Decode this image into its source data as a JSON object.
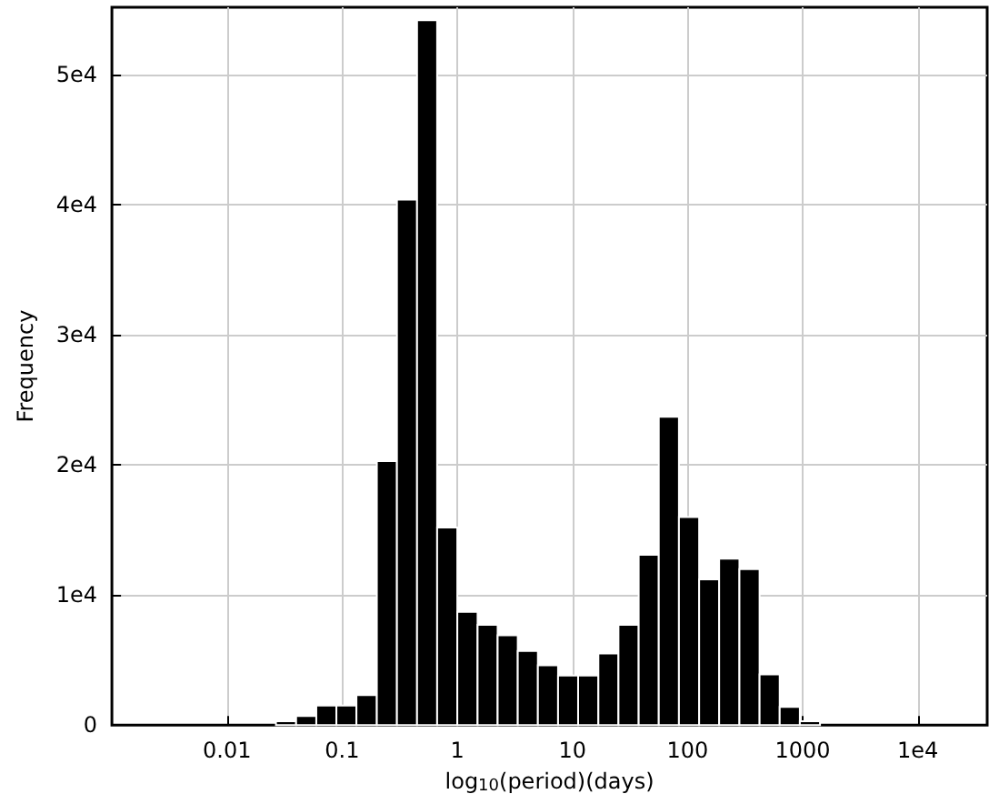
{
  "chart_data": {
    "type": "histogram",
    "xlabel": "log$_{10}$(period)(days)",
    "ylabel": "Frequency",
    "bins": [
      0.0266,
      0.0398,
      0.0596,
      0.0891,
      0.133,
      0.2,
      0.299,
      0.447,
      0.668,
      1,
      1.5,
      2.24,
      3.35,
      5.01,
      7.5,
      11.2,
      16.8,
      25.1,
      37.6,
      56.2,
      84.1,
      126,
      188,
      282,
      422,
      631,
      944,
      1413
    ],
    "values": [
      300,
      700,
      1500,
      1500,
      2300,
      20300,
      40400,
      54200,
      15200,
      8700,
      7700,
      6900,
      5700,
      4600,
      3800,
      3800,
      5500,
      7700,
      13100,
      23700,
      16000,
      11200,
      12800,
      12000,
      3900,
      1400,
      300
    ],
    "color": "#000000",
    "log": "x",
    "xlim": [
      0.001,
      40000
    ],
    "xticks": [
      {
        "value": 0.01,
        "label": "0.01"
      },
      {
        "value": 0.1,
        "label": "0.1"
      },
      {
        "value": 1,
        "label": "1"
      },
      {
        "value": 10,
        "label": "10"
      },
      {
        "value": 100,
        "label": "100"
      },
      {
        "value": 1000,
        "label": "1000"
      },
      {
        "value": 10000,
        "label": "1e4"
      }
    ],
    "ylim": [
      0,
      55200
    ],
    "yticks": [
      {
        "value": 0,
        "label": "0"
      },
      {
        "value": 10000,
        "label": "1e4"
      },
      {
        "value": 20000,
        "label": "2e4"
      },
      {
        "value": 30000,
        "label": "3e4"
      },
      {
        "value": 40000,
        "label": "4e4"
      },
      {
        "value": 50000,
        "label": "5e4"
      }
    ],
    "grid": true
  }
}
